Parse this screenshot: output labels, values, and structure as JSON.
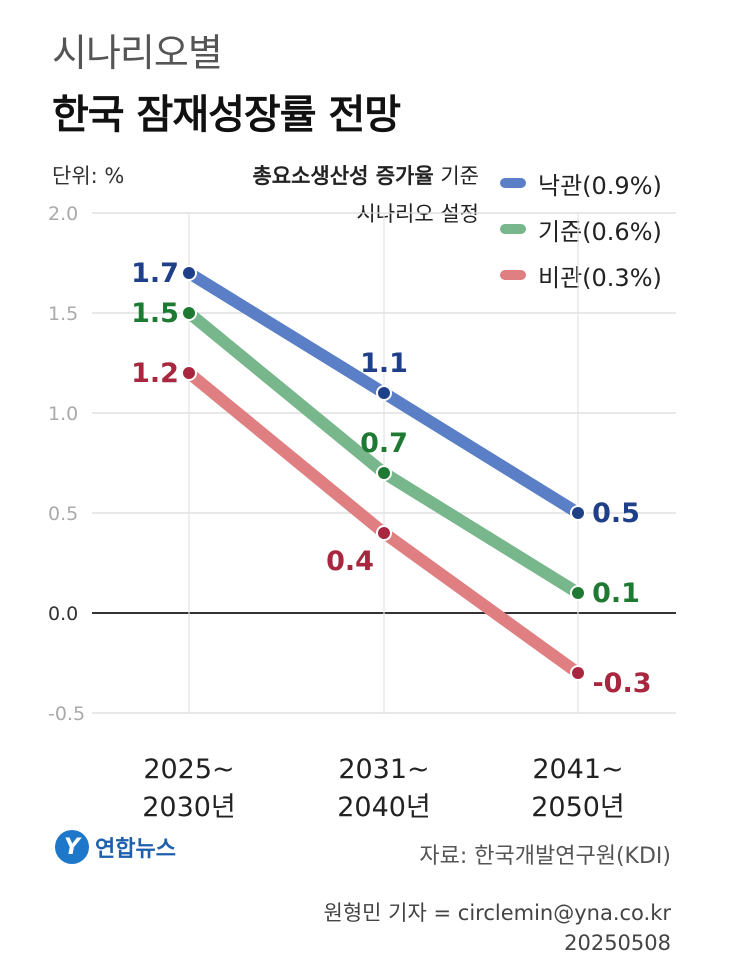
{
  "header": {
    "subtitle": "시나리오별",
    "title": "한국 잠재성장률 전망"
  },
  "unit_label": "단위: %",
  "note": {
    "bold": "총요소생산성 증가율",
    "line1_suffix": " 기준",
    "line2": "시나리오 설정"
  },
  "footer": {
    "logo_text": "연합뉴스",
    "logo_mark": "Y",
    "source": "자료: 한국개발연구원(KDI)",
    "credit": "원형민 기자 = circlemin@yna.co.kr",
    "date": "20250508"
  },
  "chart_data": {
    "type": "line",
    "title": "한국 잠재성장률 전망",
    "ylabel": "단위: %",
    "ylim": [
      -0.5,
      2.0
    ],
    "yticks": [
      "2.0",
      "1.5",
      "1.0",
      "0.5",
      "0.0",
      "-0.5"
    ],
    "ytick_values": [
      2.0,
      1.5,
      1.0,
      0.5,
      0.0,
      -0.5
    ],
    "categories": [
      [
        "2025~",
        "2030년"
      ],
      [
        "2031~",
        "2040년"
      ],
      [
        "2041~",
        "2050년"
      ]
    ],
    "series": [
      {
        "name": "낙관(0.9%)",
        "color": "#5b7fc7",
        "label_color": "#1f3f88",
        "values": [
          1.7,
          1.1,
          0.5
        ],
        "labels": [
          "1.7",
          "1.1",
          "0.5"
        ]
      },
      {
        "name": "기준(0.6%)",
        "color": "#78b68c",
        "label_color": "#1e7a32",
        "values": [
          1.5,
          0.7,
          0.1
        ],
        "labels": [
          "1.5",
          "0.7",
          "0.1"
        ]
      },
      {
        "name": "비관(0.3%)",
        "color": "#e07f82",
        "label_color": "#a8273e",
        "values": [
          1.2,
          0.4,
          -0.3
        ],
        "labels": [
          "1.2",
          "0.4",
          "-0.3"
        ]
      }
    ]
  }
}
